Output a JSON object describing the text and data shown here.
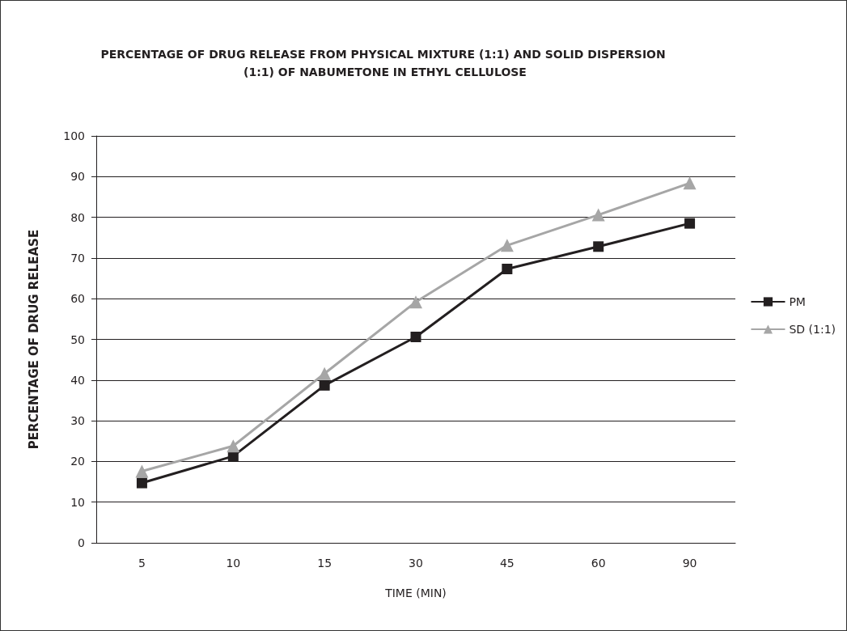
{
  "chart_data": {
    "type": "line",
    "title": "PERCENTAGE OF DRUG RELEASE FROM PHYSICAL MIXTURE (1:1) AND SOLID DISPERSION (1:1) OF NABUMETONE IN ETHYL CELLULOSE",
    "xlabel": "TIME (MIN)",
    "ylabel": "PERCENTAGE OF DRUG RELEASE",
    "categories": [
      "5",
      "10",
      "15",
      "30",
      "45",
      "60",
      "90"
    ],
    "series": [
      {
        "name": "PM",
        "color": "#231f20",
        "marker": "square",
        "values": [
          14.7,
          21.3,
          38.7,
          50.6,
          67.3,
          72.8,
          78.5
        ]
      },
      {
        "name": "SD (1:1)",
        "color": "#a6a6a6",
        "marker": "triangle",
        "values": [
          17.6,
          23.8,
          41.6,
          59.2,
          73.1,
          80.6,
          88.4
        ]
      }
    ],
    "ylim": [
      0,
      100
    ],
    "yticks": [
      0,
      10,
      20,
      30,
      40,
      50,
      60,
      70,
      80,
      90,
      100
    ],
    "grid": "y",
    "legend": "right",
    "line_style": "solid"
  }
}
